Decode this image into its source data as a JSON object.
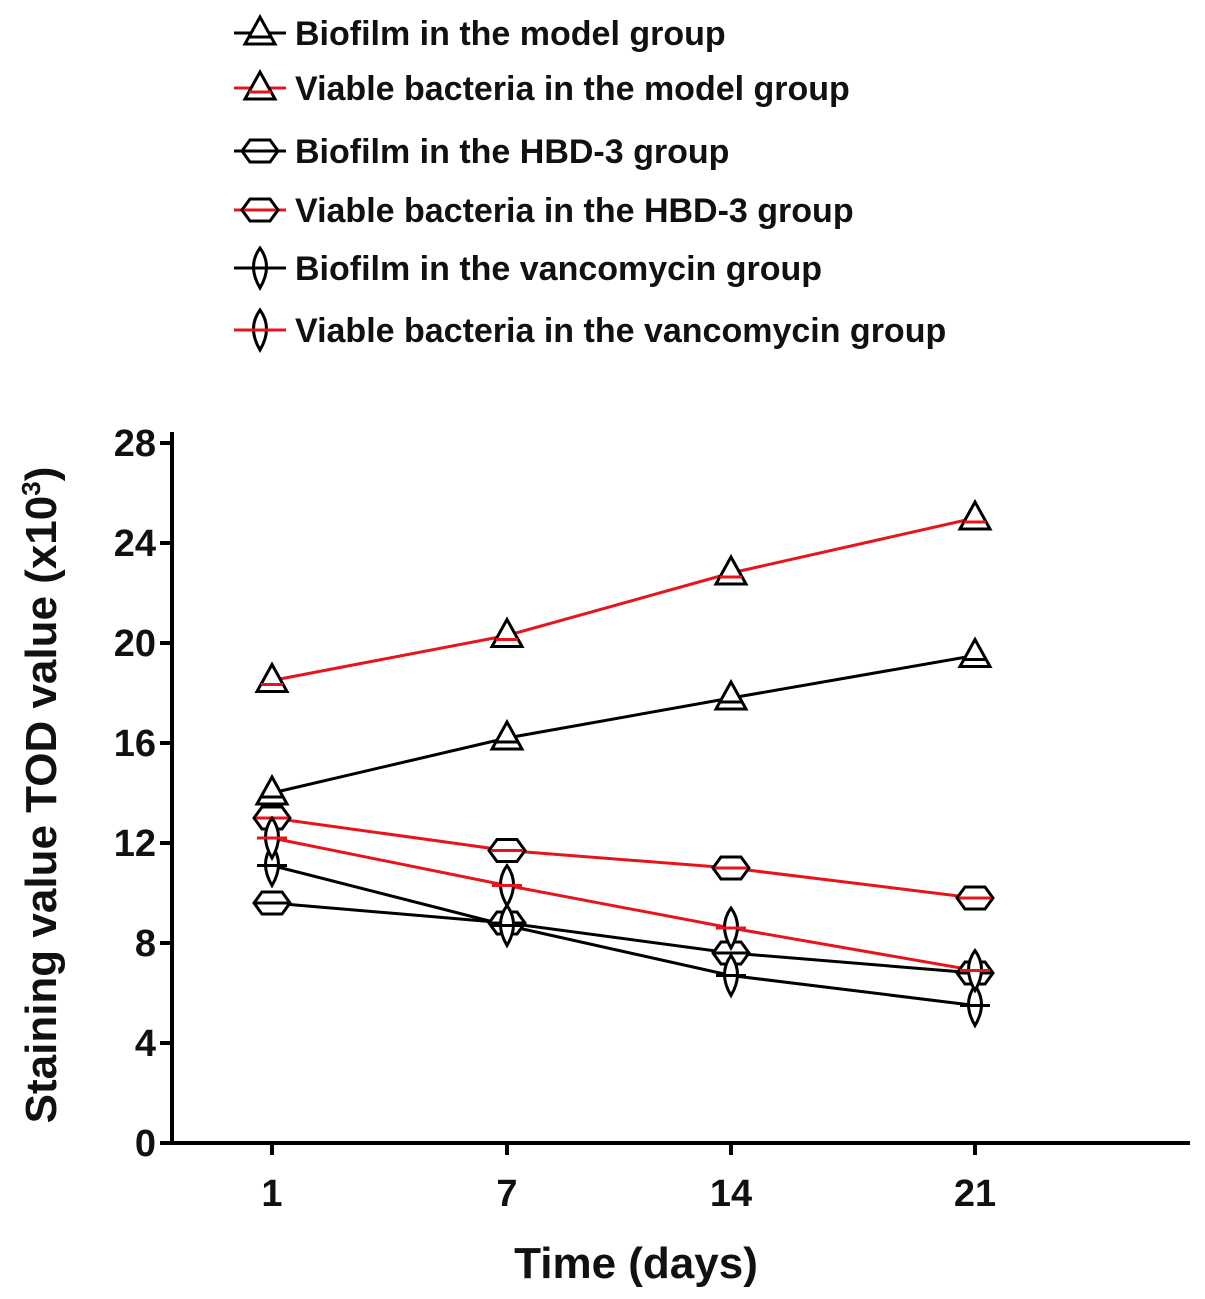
{
  "chart_data": {
    "type": "line",
    "xlabel": "Time (days)",
    "ylabel": "Staining value TOD value (x10",
    "ylabel_sup": "3",
    "ylabel_close": ")",
    "categories": [
      "1",
      "7",
      "14",
      "21"
    ],
    "x": [
      1,
      7,
      14,
      21
    ],
    "ylim": [
      0,
      28
    ],
    "yticks": [
      0,
      4,
      8,
      12,
      16,
      20,
      24,
      28
    ],
    "grid": false,
    "legend_position": "top",
    "series": [
      {
        "name": "Biofilm in the model group",
        "marker": "triangle",
        "color": "#000000",
        "values": [
          14.0,
          16.2,
          17.8,
          19.5
        ]
      },
      {
        "name": "Viable bacteria in the model group",
        "marker": "triangle",
        "color": "#e8141c",
        "values": [
          18.5,
          20.3,
          22.8,
          25.0
        ]
      },
      {
        "name": "Biofilm in the HBD-3 group",
        "marker": "hexagon",
        "color": "#000000",
        "values": [
          9.6,
          8.8,
          7.6,
          6.8
        ]
      },
      {
        "name": "Viable bacteria in the HBD-3 group",
        "marker": "hexagon",
        "color": "#e8141c",
        "values": [
          13.0,
          11.7,
          11.0,
          9.8
        ]
      },
      {
        "name": "Biofilm in the vancomycin group",
        "marker": "diamond",
        "color": "#000000",
        "values": [
          11.1,
          8.7,
          6.7,
          5.5
        ]
      },
      {
        "name": "Viable bacteria in the vancomycin group",
        "marker": "diamond",
        "color": "#e8141c",
        "values": [
          12.2,
          10.3,
          8.6,
          6.9
        ]
      }
    ]
  }
}
